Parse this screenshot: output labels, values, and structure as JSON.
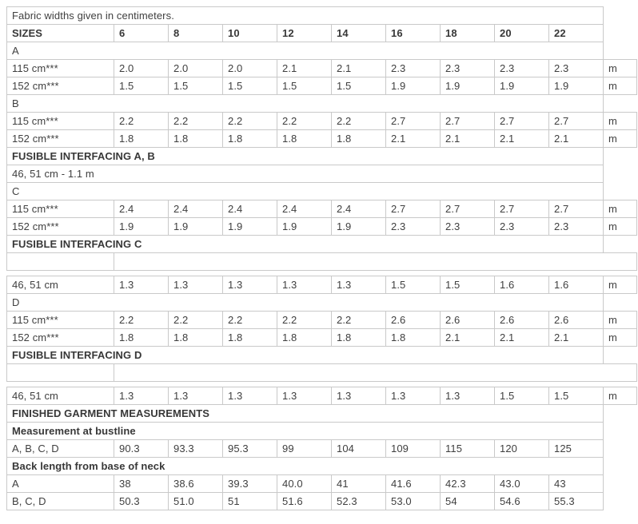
{
  "intro": "Fabric widths given in centimeters.",
  "table": {
    "rows": [
      {
        "type": "intro",
        "label": "Fabric widths given in centimeters."
      },
      {
        "type": "header",
        "label": "SIZES",
        "values": [
          "6",
          "8",
          "10",
          "12",
          "14",
          "16",
          "18",
          "20",
          "22"
        ]
      },
      {
        "type": "plain",
        "label": "A"
      },
      {
        "type": "data",
        "label": "115 cm***",
        "values": [
          "2.0",
          "2.0",
          "2.0",
          "2.1",
          "2.1",
          "2.3",
          "2.3",
          "2.3",
          "2.3"
        ],
        "unit": "m"
      },
      {
        "type": "data",
        "label": "152 cm***",
        "values": [
          "1.5",
          "1.5",
          "1.5",
          "1.5",
          "1.5",
          "1.9",
          "1.9",
          "1.9",
          "1.9"
        ],
        "unit": "m"
      },
      {
        "type": "plain",
        "label": "B"
      },
      {
        "type": "data",
        "label": "115 cm***",
        "values": [
          "2.2",
          "2.2",
          "2.2",
          "2.2",
          "2.2",
          "2.7",
          "2.7",
          "2.7",
          "2.7"
        ],
        "unit": "m"
      },
      {
        "type": "data",
        "label": "152 cm***",
        "values": [
          "1.8",
          "1.8",
          "1.8",
          "1.8",
          "1.8",
          "2.1",
          "2.1",
          "2.1",
          "2.1"
        ],
        "unit": "m"
      },
      {
        "type": "section",
        "label": "FUSIBLE INTERFACING A, B"
      },
      {
        "type": "plain",
        "label": "46, 51 cm - 1.1 m"
      },
      {
        "type": "plain",
        "label": "C"
      },
      {
        "type": "data",
        "label": "115 cm***",
        "values": [
          "2.4",
          "2.4",
          "2.4",
          "2.4",
          "2.4",
          "2.7",
          "2.7",
          "2.7",
          "2.7"
        ],
        "unit": "m"
      },
      {
        "type": "data",
        "label": "152 cm***",
        "values": [
          "1.9",
          "1.9",
          "1.9",
          "1.9",
          "1.9",
          "2.3",
          "2.3",
          "2.3",
          "2.3"
        ],
        "unit": "m"
      },
      {
        "type": "section",
        "label": "FUSIBLE INTERFACING C"
      },
      {
        "type": "empty"
      },
      {
        "type": "gap"
      },
      {
        "type": "data",
        "label": "46, 51 cm",
        "values": [
          "1.3",
          "1.3",
          "1.3",
          "1.3",
          "1.3",
          "1.5",
          "1.5",
          "1.6",
          "1.6"
        ],
        "unit": "m"
      },
      {
        "type": "plain",
        "label": "D"
      },
      {
        "type": "data",
        "label": "115 cm***",
        "values": [
          "2.2",
          "2.2",
          "2.2",
          "2.2",
          "2.2",
          "2.6",
          "2.6",
          "2.6",
          "2.6"
        ],
        "unit": "m"
      },
      {
        "type": "data",
        "label": "152 cm***",
        "values": [
          "1.8",
          "1.8",
          "1.8",
          "1.8",
          "1.8",
          "1.8",
          "2.1",
          "2.1",
          "2.1"
        ],
        "unit": "m"
      },
      {
        "type": "section",
        "label": "FUSIBLE INTERFACING D"
      },
      {
        "type": "empty"
      },
      {
        "type": "gap"
      },
      {
        "type": "data",
        "label": "46, 51 cm",
        "values": [
          "1.3",
          "1.3",
          "1.3",
          "1.3",
          "1.3",
          "1.3",
          "1.3",
          "1.5",
          "1.5"
        ],
        "unit": "m"
      },
      {
        "type": "section",
        "label": "FINISHED GARMENT MEASUREMENTS"
      },
      {
        "type": "section",
        "label": "Measurement at bustline"
      },
      {
        "type": "data_nounit",
        "label": "A, B, C, D",
        "values": [
          "90.3",
          "93.3",
          "95.3",
          "99",
          "104",
          "109",
          "115",
          "120",
          "125"
        ]
      },
      {
        "type": "section",
        "label": "Back length from base of neck"
      },
      {
        "type": "data_nounit",
        "label": "A",
        "values": [
          "38",
          "38.6",
          "39.3",
          "40.0",
          "41",
          "41.6",
          "42.3",
          "43.0",
          "43"
        ]
      },
      {
        "type": "data_nounit",
        "label": "B, C, D",
        "values": [
          "50.3",
          "51.0",
          "51",
          "51.6",
          "52.3",
          "53.0",
          "54",
          "54.6",
          "55.3"
        ]
      }
    ]
  }
}
